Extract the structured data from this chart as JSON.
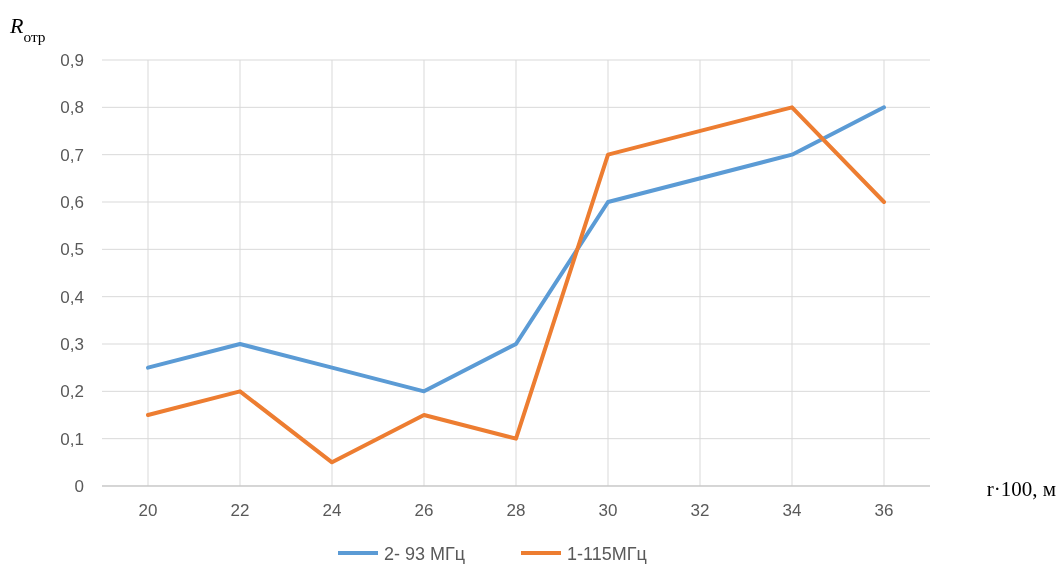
{
  "chart_data": {
    "type": "line",
    "xlabel": "r·100, м",
    "ylabel": "R$_{отр}$",
    "xlim": [
      19,
      37
    ],
    "xticks": [
      20,
      22,
      24,
      26,
      28,
      30,
      32,
      34,
      36
    ],
    "ylim": [
      0,
      0.9
    ],
    "yticks": [
      0,
      {
        "value": 0.1,
        "label": "0,1"
      },
      {
        "value": 0.2,
        "label": "0,2"
      },
      {
        "value": 0.3,
        "label": "0,3"
      },
      {
        "value": 0.4,
        "label": "0,4"
      },
      {
        "value": 0.5,
        "label": "0,5"
      },
      {
        "value": 0.6,
        "label": "0,6"
      },
      {
        "value": 0.7,
        "label": "0,7"
      },
      {
        "value": 0.8,
        "label": "0,8"
      },
      {
        "value": 0.9,
        "label": "0,9"
      }
    ],
    "grid": true,
    "legend": "bottom",
    "marker": "none",
    "line_style": "solid",
    "series": [
      {
        "name": "2- 93 МГц",
        "color": "#5b9bd5",
        "x": [
          20,
          22,
          24,
          26,
          28,
          30,
          34,
          36
        ],
        "values": [
          0.25,
          0.3,
          0.25,
          0.2,
          0.3,
          0.6,
          0.7,
          0.8
        ]
      },
      {
        "name": "1-115МГц",
        "color": "#ed7d31",
        "x": [
          20,
          22,
          24,
          26,
          28,
          30,
          34,
          36
        ],
        "values": [
          0.15,
          0.2,
          0.05,
          0.15,
          0.1,
          0.7,
          0.8,
          0.6
        ]
      }
    ]
  }
}
